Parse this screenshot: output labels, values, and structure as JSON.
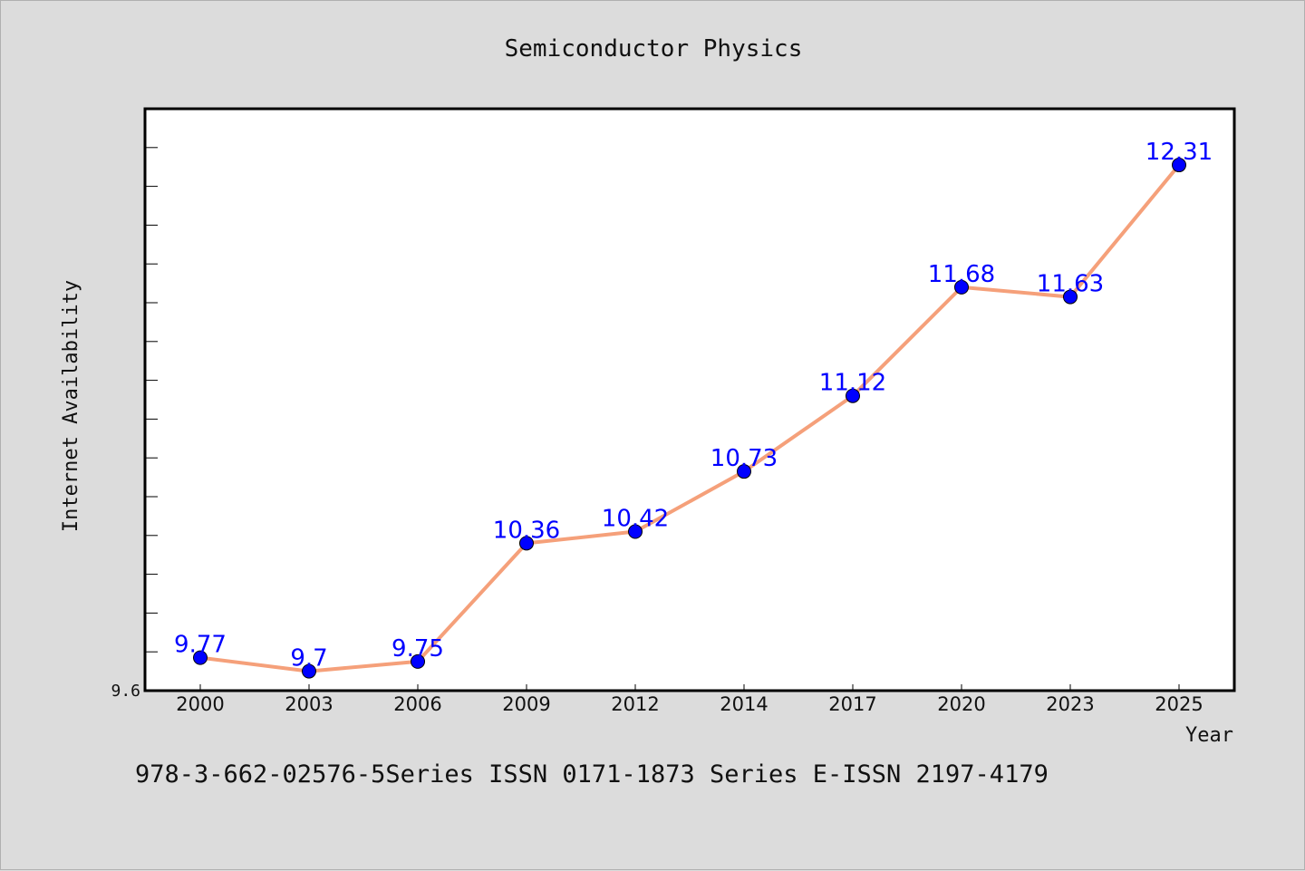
{
  "chart_data": {
    "type": "line",
    "title": "Semiconductor Physics",
    "xlabel": "Year",
    "ylabel": "Internet Availability",
    "categories": [
      "2000",
      "2003",
      "2006",
      "2009",
      "2012",
      "2014",
      "2017",
      "2020",
      "2023",
      "2025"
    ],
    "series": [
      {
        "values": [
          9.77,
          9.7,
          9.75,
          10.36,
          10.42,
          10.73,
          11.12,
          11.68,
          11.63,
          12.31
        ],
        "labels": [
          "9.77",
          "9.7",
          "9.75",
          "10.36",
          "10.42",
          "10.73",
          "11.12",
          "11.68",
          "11.63",
          "12.31"
        ]
      }
    ],
    "ylim": [
      9.6,
      12.6
    ],
    "ytick_labels": [
      "9.6"
    ],
    "grid": false,
    "colors": {
      "line": "#f5a07a",
      "marker": "#0000ff",
      "data_label": "#0000ff",
      "plot_background": "#ffffff",
      "figure_background": "#dcdcdc"
    }
  },
  "footer": "978-3-662-02576-5Series ISSN 0171-1873 Series E-ISSN 2197-4179"
}
